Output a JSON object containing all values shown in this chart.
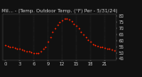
{
  "title": "Mil... - (Temp. Outdoor Temp. (°F) Per - 5/31/24)",
  "background_color": "#111111",
  "plot_bg_color": "#111111",
  "dot_color": "#ff2200",
  "grid_color": "#555555",
  "text_color": "#cccccc",
  "hours": [
    0,
    0.5,
    1,
    1.5,
    2,
    2.5,
    3,
    3.5,
    4,
    4.5,
    5,
    5.5,
    6,
    6.5,
    7,
    7.5,
    8,
    8.5,
    9,
    9.5,
    10,
    10.5,
    11,
    11.5,
    12,
    12.5,
    13,
    13.5,
    14,
    14.5,
    15,
    15.5,
    16,
    16.5,
    17,
    17.5,
    18,
    18.5,
    19,
    19.5,
    20,
    20.5,
    21,
    21.5,
    22,
    22.5,
    23
  ],
  "temps": [
    56,
    55.5,
    55,
    54.5,
    54,
    53.5,
    53,
    52.5,
    52,
    51.5,
    51,
    50.5,
    50,
    50,
    50,
    51,
    53,
    55,
    59,
    63,
    67,
    70,
    73,
    75,
    77,
    78,
    78,
    77.5,
    76,
    74,
    72,
    70,
    67,
    65,
    63,
    61,
    59,
    57,
    56,
    55.5,
    55,
    54.5,
    54,
    53.5,
    53,
    52.5,
    52
  ],
  "ylim": [
    44,
    82
  ],
  "yticks": [
    45,
    50,
    55,
    60,
    65,
    70,
    75,
    80
  ],
  "ytick_labels": [
    "45",
    "50",
    "55",
    "60",
    "65",
    "70",
    "75",
    "80"
  ],
  "xtick_positions": [
    0,
    3,
    6,
    9,
    12,
    15,
    18,
    21
  ],
  "xtick_labels": [
    "0",
    "3",
    "6",
    "9",
    "12",
    "15",
    "18",
    "21"
  ],
  "vgrid_positions": [
    3,
    6,
    9,
    12,
    15,
    18,
    21
  ],
  "title_fontsize": 4,
  "tick_fontsize": 3.5,
  "dot_size": 1.5
}
